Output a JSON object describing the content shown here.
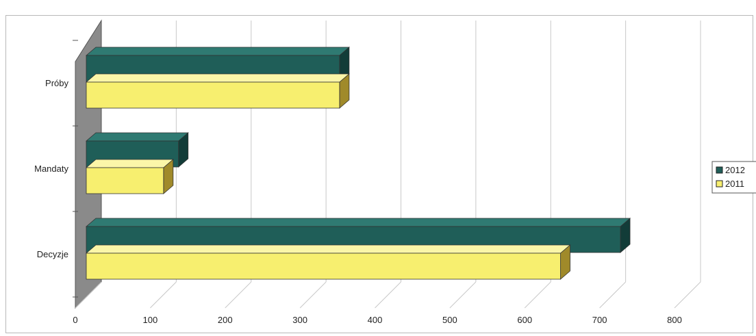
{
  "chart_data": {
    "type": "bar",
    "orientation": "horizontal",
    "three_d": true,
    "categories": [
      "Próby",
      "Mandaty",
      "Decyzje"
    ],
    "series": [
      {
        "name": "2012",
        "values": [
          340,
          125,
          715
        ],
        "color": "#1f5e58"
      },
      {
        "name": "2011",
        "values": [
          340,
          105,
          635
        ],
        "color": "#f7ef6f"
      }
    ],
    "x_ticks": [
      "0",
      "100",
      "200",
      "300",
      "400",
      "500",
      "600",
      "700",
      "800"
    ],
    "xlim": [
      0,
      800
    ],
    "grid": true,
    "legend_position": "right",
    "colors": {
      "series_2011_side": "#a08a2a",
      "wall": "#8a8a8a",
      "gridline": "#c8c8c8"
    }
  }
}
